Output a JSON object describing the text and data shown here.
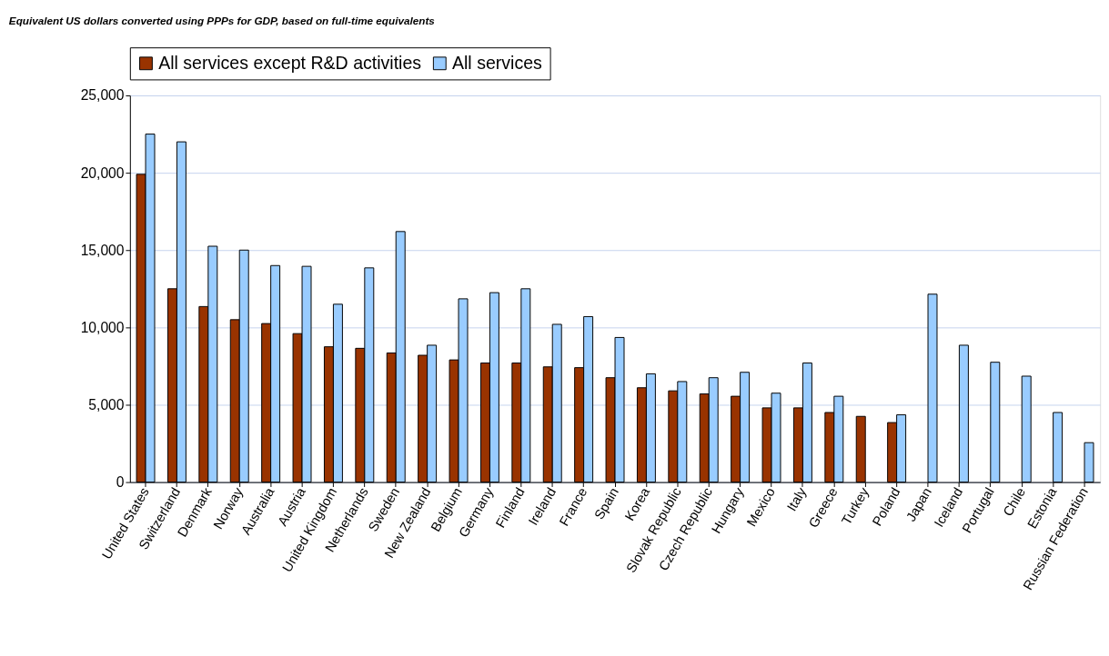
{
  "chart_data": {
    "type": "bar",
    "subtitle": "Equivalent US dollars converted using PPPs for GDP, based on full-time equivalents",
    "categories": [
      "United States",
      "Switzerland",
      "Denmark",
      "Norway",
      "Australia",
      "Austria",
      "United Kingdom",
      "Netherlands",
      "Sweden",
      "New Zealand",
      "Belgium",
      "Germany",
      "Finland",
      "Ireland",
      "France",
      "Spain",
      "Korea",
      "Slovak Republic",
      "Czech Republic",
      "Hungary",
      "Mexico",
      "Italy",
      "Greece",
      "Turkey",
      "Poland",
      "Japan",
      "Iceland",
      "Portugal",
      "Chile",
      "Estonia",
      "Russian Federation"
    ],
    "series": [
      {
        "name": "All services except R&D activities",
        "color": "#993300",
        "values": [
          19900,
          12500,
          11350,
          10500,
          10250,
          9600,
          8750,
          8650,
          8350,
          8200,
          7900,
          7700,
          7700,
          7450,
          7400,
          6750,
          6100,
          5900,
          5700,
          5550,
          4800,
          4800,
          4500,
          4250,
          3850,
          null,
          null,
          null,
          null,
          null,
          null
        ]
      },
      {
        "name": "All services",
        "color": "#99ccff",
        "values": [
          22500,
          22000,
          15250,
          15000,
          14000,
          13950,
          11500,
          13850,
          16200,
          8850,
          11850,
          12250,
          12500,
          10200,
          10700,
          9350,
          7000,
          6500,
          6750,
          7100,
          5750,
          7700,
          5550,
          null,
          4350,
          12150,
          8850,
          7750,
          6850,
          4500,
          2550
        ]
      }
    ],
    "ylim": [
      0,
      25000
    ],
    "yticks": [
      {
        "value": 0,
        "label": "0"
      },
      {
        "value": 5000,
        "label": "5,000"
      },
      {
        "value": 10000,
        "label": "10,000"
      },
      {
        "value": 15000,
        "label": "15,000"
      },
      {
        "value": 20000,
        "label": "20,000"
      },
      {
        "value": 25000,
        "label": "25,000"
      }
    ],
    "grid": "y",
    "legend": "top"
  }
}
